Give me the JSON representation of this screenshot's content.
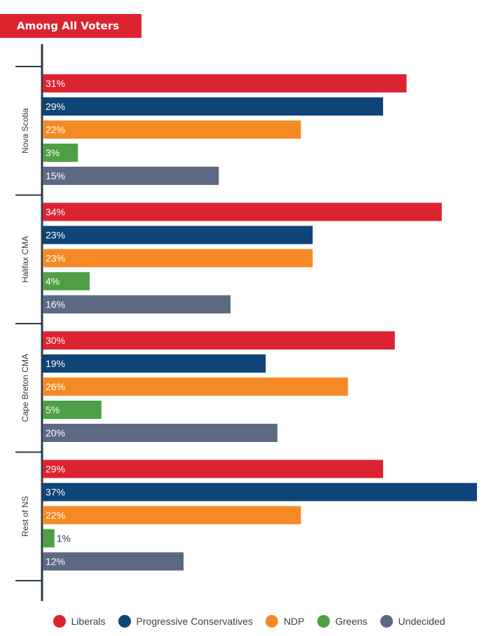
{
  "title": "Among All Voters",
  "chart_data": {
    "type": "bar",
    "orientation": "horizontal",
    "title": "Among All Voters",
    "xlim": [
      0,
      37
    ],
    "grid": false,
    "legend_position": "bottom",
    "value_suffix": "%",
    "groups": [
      "Nova Scotia",
      "Halifax CMA",
      "Cape Breton CMA",
      "Rest of NS"
    ],
    "series": [
      {
        "name": "Liberals",
        "color": "#db2430",
        "values": [
          31,
          34,
          30,
          29
        ]
      },
      {
        "name": "Progressive Conservatives",
        "color": "#0e4477",
        "values": [
          29,
          23,
          19,
          37
        ]
      },
      {
        "name": "NDP",
        "color": "#f58a24",
        "values": [
          22,
          23,
          26,
          22
        ]
      },
      {
        "name": "Greens",
        "color": "#4e9f45",
        "values": [
          3,
          4,
          5,
          1
        ]
      },
      {
        "name": "Undecided",
        "color": "#5b6a82",
        "values": [
          15,
          16,
          20,
          12
        ]
      }
    ]
  }
}
